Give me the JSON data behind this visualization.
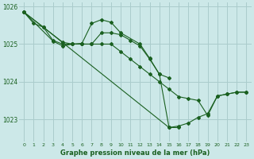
{
  "xlabel_label": "Graphe pression niveau de la mer (hPa)",
  "bg_color": "#cce8e8",
  "grid_color": "#aacccc",
  "line_color": "#1a6020",
  "ylim": [
    1022.4,
    1026.1
  ],
  "yticks": [
    1023,
    1024,
    1025,
    1026
  ],
  "xlim": [
    -0.5,
    23.5
  ],
  "xticks": [
    0,
    1,
    2,
    3,
    4,
    5,
    6,
    7,
    8,
    9,
    10,
    11,
    12,
    13,
    14,
    15,
    16,
    17,
    18,
    19,
    20,
    21,
    22,
    23
  ],
  "series": [
    {
      "x": [
        0,
        1,
        2,
        3,
        4,
        5,
        6,
        7,
        8,
        9,
        10,
        11,
        12,
        13,
        14,
        15,
        16,
        17,
        18,
        19,
        20,
        21,
        22,
        23
      ],
      "y": [
        1025.85,
        1025.55,
        1025.45,
        1025.1,
        1025.0,
        1025.0,
        1025.0,
        1025.0,
        1025.3,
        1025.3,
        1025.25,
        1025.1,
        1024.95,
        1024.6,
        1024.2,
        1022.78,
        1022.82,
        1022.9,
        1023.05,
        1023.15,
        1023.62,
        1023.67,
        1023.72,
        1023.72
      ]
    },
    {
      "x": [
        0,
        3,
        4,
        5,
        6,
        7,
        8,
        9,
        10,
        12,
        13,
        14,
        15
      ],
      "y": [
        1025.85,
        1025.08,
        1024.95,
        1025.0,
        1025.02,
        1025.55,
        1025.65,
        1025.58,
        1025.3,
        1025.0,
        1024.62,
        1024.2,
        1024.1
      ]
    },
    {
      "x": [
        0,
        4,
        5,
        6,
        7,
        8,
        9,
        10,
        11,
        12,
        13,
        14,
        15,
        16,
        17,
        18,
        19,
        20,
        21,
        22,
        23
      ],
      "y": [
        1025.85,
        1025.05,
        1025.0,
        1025.0,
        1025.0,
        1025.0,
        1025.0,
        1024.8,
        1024.6,
        1024.4,
        1024.2,
        1024.0,
        1023.8,
        1023.6,
        1023.55,
        1023.5,
        1023.1,
        1023.62,
        1023.67,
        1023.72,
        1023.72
      ]
    },
    {
      "x": [
        0,
        2,
        15,
        16
      ],
      "y": [
        1025.85,
        1025.45,
        1022.78,
        1022.78
      ]
    }
  ]
}
